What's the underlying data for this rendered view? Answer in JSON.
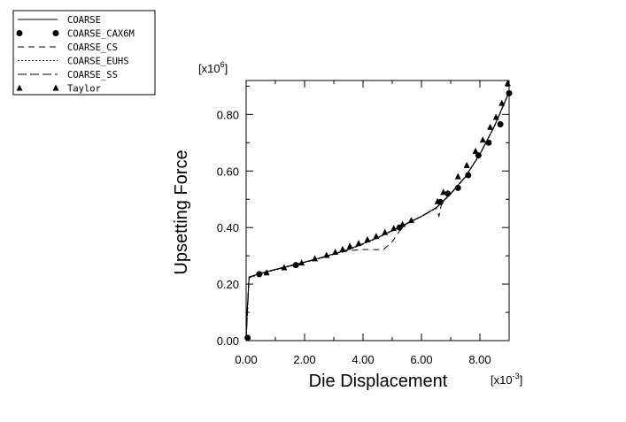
{
  "chart_data": {
    "type": "line",
    "xlabel": "Die Displacement",
    "ylabel": "Upsetting Force",
    "x_multiplier_label": {
      "base": "[x10",
      "exp": "-3",
      "close": "]"
    },
    "y_multiplier_label": {
      "base": "[x10",
      "exp": "6",
      "close": "]"
    },
    "xlim": [
      0,
      9
    ],
    "ylim": [
      0,
      0.92
    ],
    "x_ticks": [
      0,
      2,
      4,
      6,
      8
    ],
    "x_tick_labels": [
      "0.00",
      "2.00",
      "4.00",
      "6.00",
      "8.00"
    ],
    "y_ticks": [
      0,
      0.2,
      0.4,
      0.6,
      0.8
    ],
    "y_tick_labels": [
      "0.00",
      "0.20",
      "0.40",
      "0.60",
      "0.80"
    ],
    "grid": false,
    "legend_position": "top-left, outside plot",
    "series": [
      {
        "name": "COARSE",
        "style": "solid",
        "marker": "none",
        "x": [
          0,
          0.03,
          0.1,
          0.5,
          1,
          1.5,
          2,
          2.5,
          3,
          3.5,
          4,
          4.5,
          5,
          5.5,
          6,
          6.5,
          7,
          7.5,
          8,
          8.5,
          9
        ],
        "y": [
          0,
          0.1,
          0.225,
          0.238,
          0.252,
          0.265,
          0.278,
          0.292,
          0.307,
          0.323,
          0.343,
          0.365,
          0.39,
          0.415,
          0.44,
          0.47,
          0.52,
          0.58,
          0.66,
          0.76,
          0.88
        ]
      },
      {
        "name": "COARSE_CAX6M",
        "style": "none",
        "marker": "circle",
        "x": [
          0.05,
          0.45,
          1.7,
          5.25,
          6.65,
          6.9,
          7.25,
          7.6,
          7.95,
          8.3,
          8.7,
          9.0
        ],
        "y": [
          0.01,
          0.235,
          0.267,
          0.4,
          0.49,
          0.52,
          0.54,
          0.585,
          0.655,
          0.7,
          0.765,
          0.875
        ]
      },
      {
        "name": "COARSE_CS",
        "style": "dashed",
        "marker": "none",
        "x": [
          0,
          0.03,
          0.1,
          0.5,
          1,
          1.5,
          2,
          2.5,
          3,
          3.5,
          4,
          4.7,
          5.0,
          5.3,
          5.5,
          6,
          6.5,
          6.6,
          6.7,
          7,
          7.5,
          8,
          8.5,
          9
        ],
        "y": [
          0,
          0.1,
          0.225,
          0.238,
          0.252,
          0.265,
          0.278,
          0.292,
          0.306,
          0.318,
          0.322,
          0.322,
          0.35,
          0.395,
          0.415,
          0.44,
          0.47,
          0.44,
          0.49,
          0.52,
          0.58,
          0.66,
          0.76,
          0.88
        ]
      },
      {
        "name": "COARSE_EUHS",
        "style": "dotted",
        "marker": "none",
        "x": [
          0,
          0.1,
          0.5,
          1,
          1.5,
          2,
          2.5,
          3,
          3.5,
          4,
          4.5,
          5,
          5.5,
          6,
          6.5,
          7,
          7.5,
          8,
          8.5,
          9
        ],
        "y": [
          0,
          0.222,
          0.236,
          0.25,
          0.263,
          0.276,
          0.29,
          0.305,
          0.321,
          0.341,
          0.363,
          0.388,
          0.413,
          0.438,
          0.468,
          0.518,
          0.578,
          0.658,
          0.758,
          0.878
        ]
      },
      {
        "name": "COARSE_SS",
        "style": "long-dashed",
        "marker": "none",
        "x": [
          0,
          0.1,
          0.5,
          1,
          1.5,
          2,
          2.5,
          3,
          3.5,
          4,
          4.5,
          5,
          5.5,
          6,
          6.5,
          7,
          7.5,
          8,
          8.5,
          9
        ],
        "y": [
          0,
          0.224,
          0.237,
          0.251,
          0.264,
          0.277,
          0.291,
          0.306,
          0.322,
          0.342,
          0.364,
          0.389,
          0.414,
          0.439,
          0.469,
          0.519,
          0.579,
          0.659,
          0.759,
          0.879
        ]
      },
      {
        "name": "Taylor",
        "style": "none",
        "marker": "triangle",
        "x": [
          0.7,
          1.3,
          1.9,
          2.35,
          2.75,
          3.05,
          3.3,
          3.55,
          3.85,
          4.15,
          4.45,
          4.75,
          5.05,
          5.35,
          5.65,
          6.55,
          6.75,
          7.25,
          7.55,
          7.85,
          8.1,
          8.35,
          8.55,
          8.75,
          8.95
        ],
        "y": [
          0.24,
          0.258,
          0.275,
          0.29,
          0.302,
          0.313,
          0.323,
          0.334,
          0.344,
          0.357,
          0.369,
          0.383,
          0.397,
          0.411,
          0.425,
          0.492,
          0.525,
          0.58,
          0.62,
          0.67,
          0.71,
          0.755,
          0.79,
          0.84,
          0.91
        ]
      }
    ]
  }
}
